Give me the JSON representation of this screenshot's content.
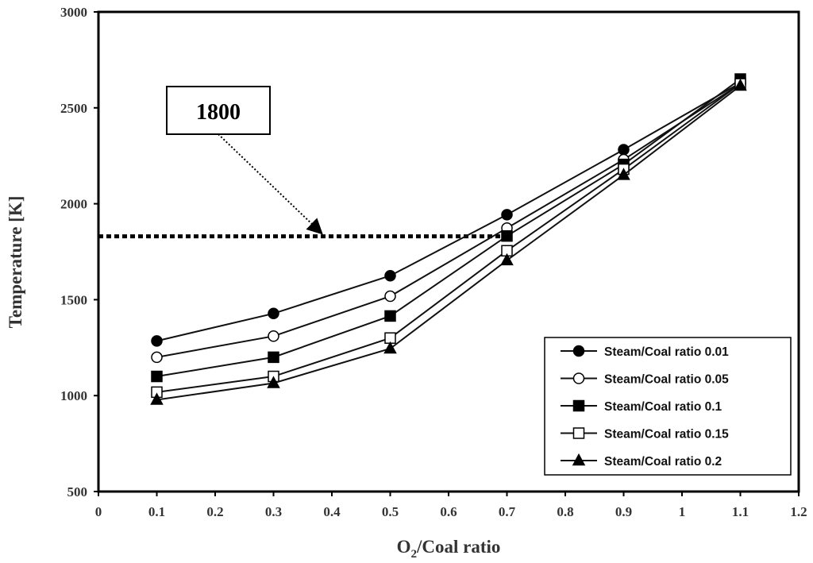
{
  "chart_data": {
    "type": "line",
    "title": "",
    "xlabel": "O2/Coal ratio",
    "xlabel_main": "O",
    "xlabel_sub": "2",
    "xlabel_rest": "/Coal ratio",
    "ylabel": "Temperature [K]",
    "xlim": [
      0,
      1.2
    ],
    "ylim": [
      500,
      3000
    ],
    "xticks": [
      0,
      0.1,
      0.2,
      0.3,
      0.4,
      0.5,
      0.6,
      0.7,
      0.8,
      0.9,
      1,
      1.1,
      1.2
    ],
    "xtick_labels": [
      "0",
      "0.1",
      "0.2",
      "0.3",
      "0.4",
      "0.5",
      "0.6",
      "0.7",
      "0.8",
      "0.9",
      "1",
      "1.1",
      "1.2"
    ],
    "yticks": [
      500,
      1000,
      1500,
      2000,
      2500,
      3000
    ],
    "ytick_labels": [
      "500",
      "1000",
      "1500",
      "2000",
      "2500",
      "3000"
    ],
    "grid": false,
    "legend_position": "bottom-right",
    "x": [
      0.1,
      0.3,
      0.5,
      0.7,
      0.9,
      1.1
    ],
    "series": [
      {
        "name": "Steam/Coal ratio 0.01",
        "marker": "circle-filled",
        "values": [
          1285,
          1428,
          1625,
          1943,
          2282,
          2630
        ]
      },
      {
        "name": "Steam/Coal ratio 0.05",
        "marker": "circle-open",
        "values": [
          1200,
          1310,
          1518,
          1873,
          2230,
          2625
        ]
      },
      {
        "name": "Steam/Coal ratio 0.1",
        "marker": "square-filled",
        "values": [
          1100,
          1200,
          1415,
          1832,
          2205,
          2650
        ]
      },
      {
        "name": "Steam/Coal ratio 0.15",
        "marker": "square-open",
        "values": [
          1018,
          1100,
          1300,
          1755,
          2180,
          2625
        ]
      },
      {
        "name": "Steam/Coal ratio 0.2",
        "marker": "triangle-filled",
        "values": [
          978,
          1065,
          1245,
          1705,
          2150,
          2615
        ]
      }
    ],
    "reference_line": {
      "y": 1830,
      "x_start": 0,
      "x_end": 0.7,
      "style": "dotted"
    },
    "annotation": {
      "text": "1800",
      "arrow_to": {
        "x": 0.37,
        "y": 1830
      }
    }
  },
  "colors": {
    "line": "#111111",
    "axis": "#000000",
    "text": "#333333",
    "background": "#ffffff"
  }
}
